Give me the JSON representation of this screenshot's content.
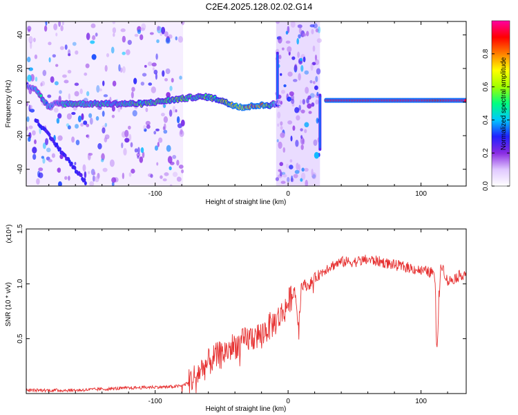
{
  "page": {
    "title": "C2E4.2025.128.02.02.G14"
  },
  "chart_data": [
    {
      "type": "heatmap",
      "xlabel": "Height of straight line (km)",
      "ylabel": "Frequency (Hz)",
      "xlim": [
        -197,
        134
      ],
      "ylim": [
        -50,
        48
      ],
      "xticks": [
        -100,
        0,
        100
      ],
      "xtick_labels": [
        "-100",
        "0",
        "100"
      ],
      "yticks": [
        -40,
        -20,
        0,
        20,
        40
      ],
      "ytick_labels": [
        "-40",
        "-20",
        "0",
        "20",
        "40"
      ],
      "colorbar": {
        "label": "Normalized spectral amplitude",
        "range": [
          0,
          1
        ],
        "ticks": [
          0,
          0.2,
          0.4,
          0.6,
          0.8
        ],
        "tick_labels": [
          "0.0",
          "0.2",
          "0.4",
          "0.6",
          "0.8"
        ],
        "colormap": [
          "#ffffff",
          "#e0c8ff",
          "#8a2be2",
          "#2020ff",
          "#00c8ff",
          "#00ff80",
          "#a0ff00",
          "#ffff00",
          "#ff8000",
          "#ff0000",
          "#ff00a0"
        ]
      },
      "signal_track": {
        "x": [
          -197,
          -190,
          -185,
          -180,
          -175,
          -165,
          -150,
          -140,
          -130,
          -120,
          -110,
          -100,
          -90,
          -80,
          -70,
          -60,
          -50,
          -45,
          -40,
          -35,
          -30,
          -25,
          -20,
          -15,
          -10,
          -5,
          28,
          40,
          60,
          80,
          100,
          112,
          120,
          134
        ],
        "freq": [
          10,
          8,
          2,
          -3,
          -1,
          -1,
          -1,
          -1,
          -1,
          -1,
          -1,
          0,
          1,
          2,
          3,
          3,
          1,
          -1,
          -2,
          -3,
          -3,
          -2,
          -2,
          -2,
          -1,
          0,
          1,
          1,
          1,
          1,
          1,
          1,
          1,
          1
        ],
        "amplitude": [
          0.3,
          0.4,
          0.45,
          0.4,
          0.35,
          0.5,
          0.45,
          0.5,
          0.45,
          0.5,
          0.55,
          0.5,
          0.55,
          0.55,
          0.5,
          0.55,
          0.6,
          0.7,
          0.8,
          0.85,
          0.9,
          0.9,
          0.85,
          0.7,
          0.4,
          0.2,
          0.95,
          0.95,
          0.95,
          0.95,
          0.95,
          0.9,
          0.95,
          0.95
        ]
      },
      "secondary_track": {
        "x": [
          -190,
          -180,
          -170,
          -160,
          -152
        ],
        "freq": [
          -10,
          -20,
          -30,
          -40,
          -48
        ],
        "amplitude": 0.25
      },
      "noise_bands": [
        {
          "x_range": [
            -197,
            -79
          ],
          "density": 0.55
        },
        {
          "x_range": [
            -9,
            24
          ],
          "density": 1.0
        }
      ],
      "vertical_spikes": [
        {
          "x": -8,
          "freq_range": [
            -3,
            30
          ]
        },
        {
          "x": 24,
          "freq_range": [
            -29,
            5
          ]
        }
      ]
    },
    {
      "type": "line",
      "xlabel": "Height of straight line (km)",
      "ylabel": "SNR (10 * v/v)",
      "scale_label": "(x10⁴)",
      "xlim": [
        -197,
        134
      ],
      "ylim": [
        0,
        1.5
      ],
      "xticks": [
        -100,
        0,
        100
      ],
      "xtick_labels": [
        "-100",
        "0",
        "100"
      ],
      "yticks": [
        0.5,
        1.0,
        1.5
      ],
      "ytick_labels": [
        "0.5",
        "1.0",
        "1.5"
      ],
      "line_color": "#e63030",
      "series": [
        {
          "x": [
            -197,
            -180,
            -160,
            -140,
            -120,
            -100,
            -90,
            -80,
            -75,
            -70,
            -65,
            -60,
            -55,
            -50,
            -45,
            -40,
            -35,
            -30,
            -25,
            -20,
            -15,
            -10,
            -5,
            0,
            5,
            8,
            10,
            15,
            20,
            30,
            40,
            50,
            60,
            70,
            80,
            90,
            100,
            110,
            112,
            115,
            120,
            125,
            130,
            134
          ],
          "values": [
            0.03,
            0.03,
            0.03,
            0.04,
            0.05,
            0.06,
            0.06,
            0.07,
            0.1,
            0.16,
            0.22,
            0.28,
            0.33,
            0.36,
            0.4,
            0.44,
            0.46,
            0.5,
            0.52,
            0.54,
            0.6,
            0.65,
            0.72,
            0.82,
            0.95,
            0.6,
            1.0,
            0.98,
            1.05,
            1.15,
            1.2,
            1.2,
            1.22,
            1.2,
            1.17,
            1.15,
            1.12,
            1.1,
            0.45,
            1.2,
            1.02,
            1.05,
            1.08,
            1.1
          ]
        }
      ]
    }
  ]
}
